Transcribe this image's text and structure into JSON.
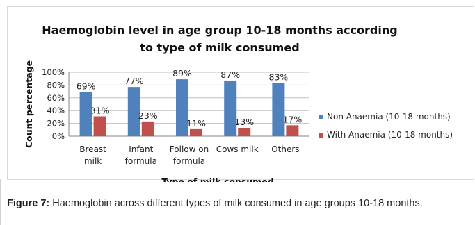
{
  "chart_data": {
    "type": "bar",
    "title_line1": "Haemoglobin level in age group 10-18 months according",
    "title_line2": "to type of milk consumed",
    "xlabel": "Type of milk consumed",
    "ylabel": "Count percentage",
    "ylim": [
      0,
      100
    ],
    "yticks": [
      "0%",
      "20%",
      "40%",
      "60%",
      "80%",
      "100%"
    ],
    "categories": [
      [
        "Breast",
        "milk"
      ],
      [
        "Infant",
        "formula"
      ],
      [
        "Follow on",
        "formula"
      ],
      [
        "Cows milk"
      ],
      [
        "Others"
      ]
    ],
    "series": [
      {
        "name": "Non Anaemia (10-18 months)",
        "color": "#4f81bd",
        "values": [
          69,
          77,
          89,
          87,
          83
        ],
        "labels": [
          "69%",
          "77%",
          "89%",
          "87%",
          "83%"
        ]
      },
      {
        "name": "With Anaemia (10-18 months)",
        "color": "#c0504d",
        "values": [
          31,
          23,
          11,
          13,
          17
        ],
        "labels": [
          "31%",
          "23%",
          "11%",
          "13%",
          "17%"
        ]
      }
    ],
    "grid": true,
    "legend": "right"
  },
  "caption": {
    "label": "Figure 7:",
    "text": " Haemoglobin across different types of milk consumed in age groups 10-18 months."
  }
}
